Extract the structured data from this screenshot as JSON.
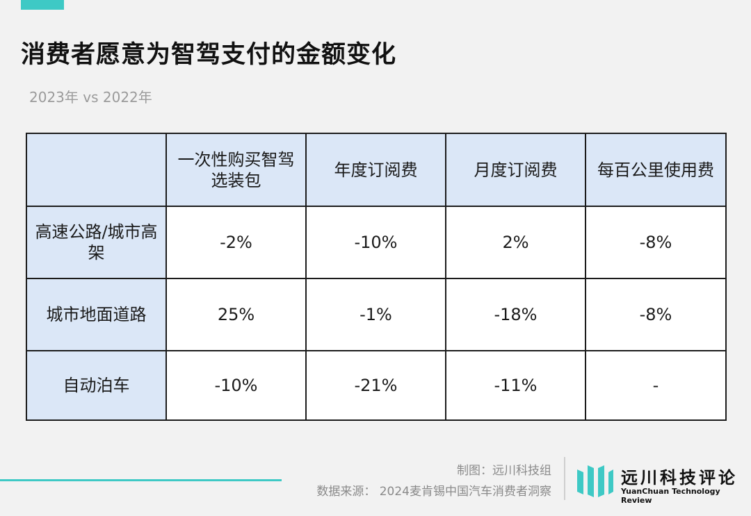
{
  "title": "消费者愿意为智驾支付的金额变化",
  "subtitle": "2023年 vs 2022年",
  "chart_data": {
    "type": "table",
    "columns": [
      "",
      "一次性购买智驾选装包",
      "年度订阅费",
      "月度订阅费",
      "每百公里使用费"
    ],
    "rows": [
      {
        "label": "高速公路/城市高架",
        "values": [
          "-2%",
          "-10%",
          "2%",
          "-8%"
        ]
      },
      {
        "label": "城市地面道路",
        "values": [
          "25%",
          "-1%",
          "-18%",
          "-8%"
        ]
      },
      {
        "label": "自动泊车",
        "values": [
          "-10%",
          "-21%",
          "-11%",
          "-"
        ]
      }
    ]
  },
  "footer": {
    "credit": "制图：远川科技组",
    "source": "数据来源： 2024麦肯锡中国汽车消费者洞察"
  },
  "logo": {
    "name": "远川科技评论",
    "english": "YuanChuan Technology Review"
  },
  "colors": {
    "accent": "#3ec9c5",
    "header_bg": "#dbe7f7",
    "cell_bg": "#ffffff",
    "page_bg": "#f2f2f2"
  }
}
